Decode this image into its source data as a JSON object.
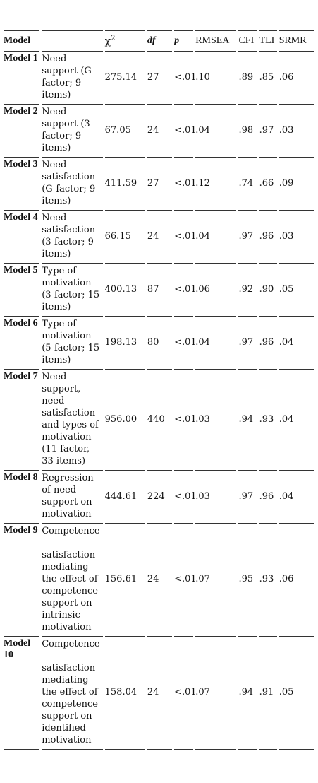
{
  "headers": {
    "model": "Model",
    "chi_sym": "χ",
    "chi_sup": "2",
    "df": "df",
    "p": "p",
    "rmsea": "RMSEA",
    "cfi": "CFI",
    "tli": "TLI",
    "srmr": "SRMR"
  },
  "rows": [
    {
      "model": "Model 1",
      "desc": "Need support (G-factor; 9 items)",
      "chi2": "275.14",
      "df": "27",
      "p": "<.01",
      "rmsea": ".10",
      "cfi": ".89",
      "tli": ".85",
      "srmr": ".06"
    },
    {
      "model": "Model 2",
      "desc": "Need support (3-factor; 9 items)",
      "chi2": "67.05",
      "df": "24",
      "p": "<.01",
      "rmsea": ".04",
      "cfi": ".98",
      "tli": ".97",
      "srmr": ".03"
    },
    {
      "model": "Model 3",
      "desc": "Need satisfaction (G-factor; 9 items)",
      "chi2": "411.59",
      "df": "27",
      "p": "<.01",
      "rmsea": ".12",
      "cfi": ".74",
      "tli": ".66",
      "srmr": ".09"
    },
    {
      "model": "Model 4",
      "desc": "Need satisfaction (3-factor; 9 items)",
      "chi2": "66.15",
      "df": "24",
      "p": "<.01",
      "rmsea": ".04",
      "cfi": ".97",
      "tli": ".96",
      "srmr": ".03"
    },
    {
      "model": "Model 5",
      "desc": "Type of motivation (3-factor; 15 items)",
      "chi2": "400.13",
      "df": "87",
      "p": "<.01",
      "rmsea": ".06",
      "cfi": ".92",
      "tli": ".90",
      "srmr": ".05"
    },
    {
      "model": "Model 6",
      "desc": "Type of motivation (5-factor; 15 items)",
      "chi2": "198.13",
      "df": "80",
      "p": "<.01",
      "rmsea": ".04",
      "cfi": ".97",
      "tli": ".96",
      "srmr": ".04"
    },
    {
      "model": "Model 7",
      "desc": "Need support, need satisfaction and types of motivation (11-factor, 33 items)",
      "chi2": "956.00",
      "df": "440",
      "p": "<.01",
      "rmsea": ".03",
      "cfi": ".94",
      "tli": ".93",
      "srmr": ".04"
    },
    {
      "model": "Model 8",
      "desc": "Regression of need support on motivation",
      "chi2": "444.61",
      "df": "224",
      "p": "<.01",
      "rmsea": ".03",
      "cfi": ".97",
      "tli": ".96",
      "srmr": ".04"
    },
    {
      "model": "Model 9",
      "desc_first": "Competence",
      "desc": "satisfaction mediating the effect of competence support on intrinsic motivation",
      "chi2": "156.61",
      "df": "24",
      "p": "<.01",
      "rmsea": ".07",
      "cfi": ".95",
      "tli": ".93",
      "srmr": ".06"
    },
    {
      "model": "Model 10",
      "desc_first": "Competence",
      "desc": "satisfaction mediating the effect of competence support on identified motivation",
      "chi2": "158.04",
      "df": "24",
      "p": "<.01",
      "rmsea": ".07",
      "cfi": ".94",
      "tli": ".91",
      "srmr": ".05"
    }
  ]
}
